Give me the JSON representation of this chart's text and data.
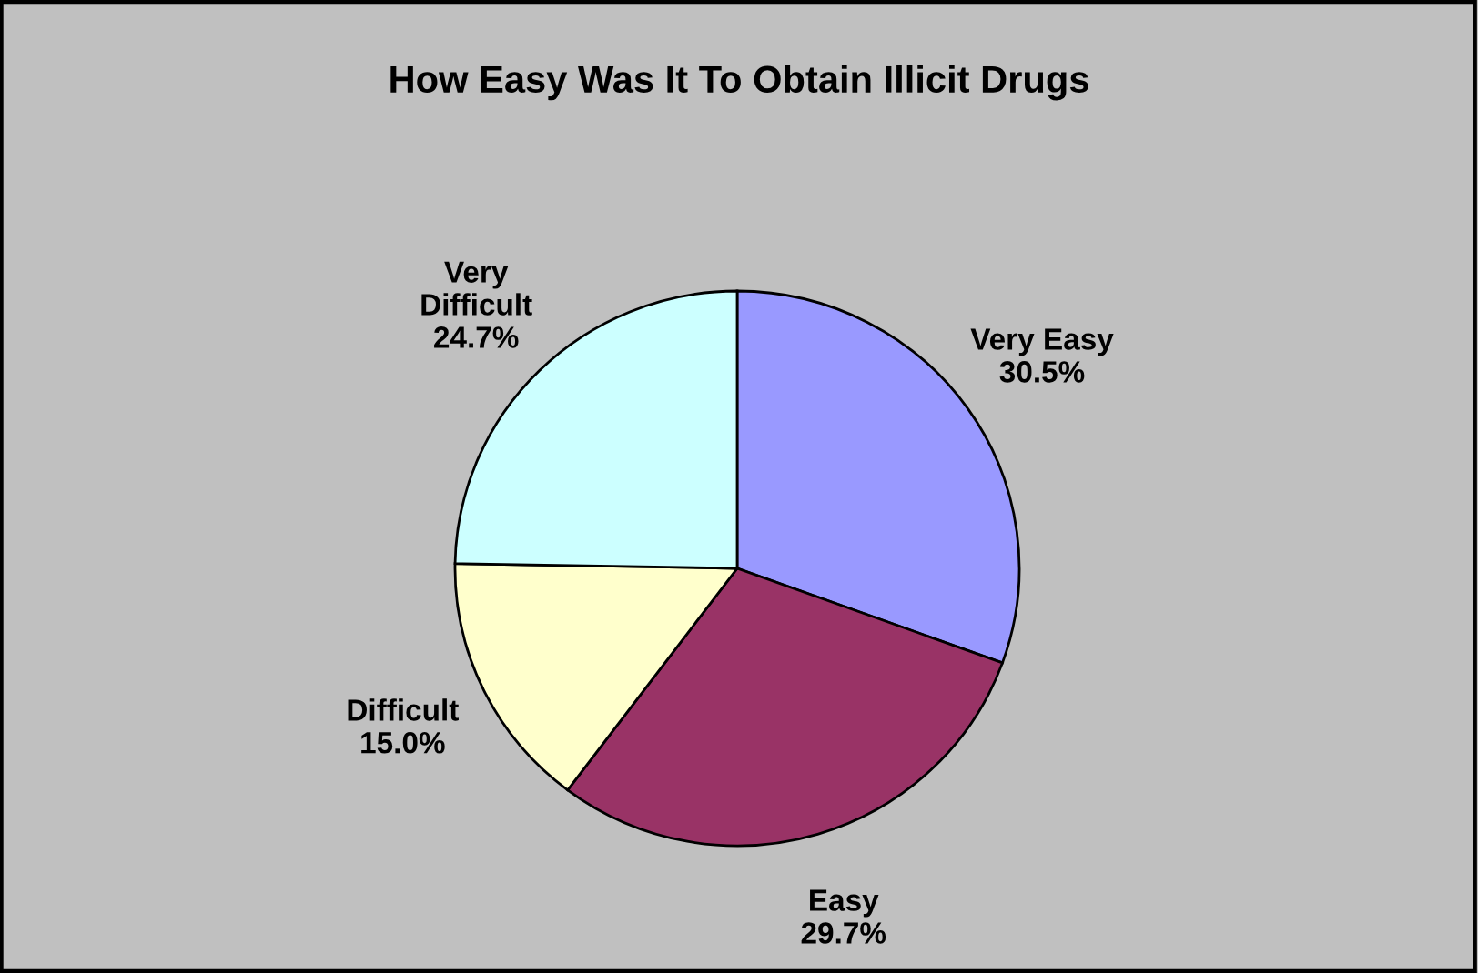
{
  "chart_data": {
    "type": "pie",
    "title": "How Easy Was It To Obtain Illicit Drugs",
    "categories": [
      "Very Easy",
      "Easy",
      "Difficult",
      "Very\nDifficult"
    ],
    "values": [
      30.5,
      29.7,
      15.0,
      24.7
    ],
    "colors": [
      "#9999ff",
      "#993366",
      "#ffffcc",
      "#ccffff"
    ],
    "value_labels": [
      "30.5%",
      "29.7%",
      "15.0%",
      "24.7%"
    ],
    "legend": false
  }
}
